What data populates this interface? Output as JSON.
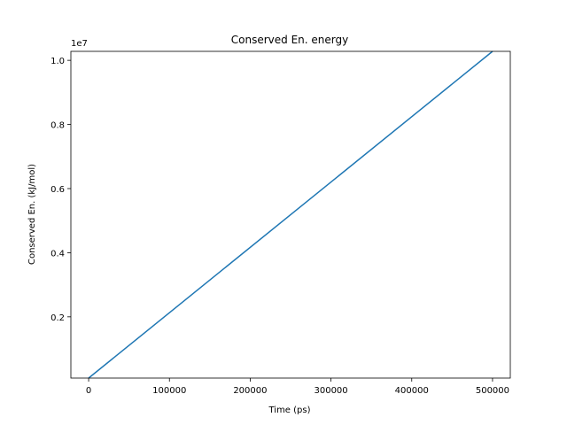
{
  "chart_data": {
    "type": "line",
    "title": "Conserved En. energy",
    "xlabel": "Time (ps)",
    "ylabel": "Conserved En. (kJ/mol)",
    "y_offset_label": "1e7",
    "xlim": [
      -22000,
      522000
    ],
    "ylim": [
      0.009,
      1.028
    ],
    "y_scale_multiplier": 10000000,
    "x_ticks": [
      0,
      100000,
      200000,
      300000,
      400000,
      500000
    ],
    "x_tick_labels": [
      "0",
      "100000",
      "200000",
      "300000",
      "400000",
      "500000"
    ],
    "y_ticks": [
      0.2,
      0.4,
      0.6,
      0.8,
      1.0
    ],
    "y_tick_labels": [
      "0.2",
      "0.4",
      "0.6",
      "0.8",
      "1.0"
    ],
    "grid": false,
    "series": [
      {
        "color": "#1f77b4",
        "x": [
          0,
          500000
        ],
        "y": [
          0.009,
          1.028
        ]
      }
    ]
  }
}
